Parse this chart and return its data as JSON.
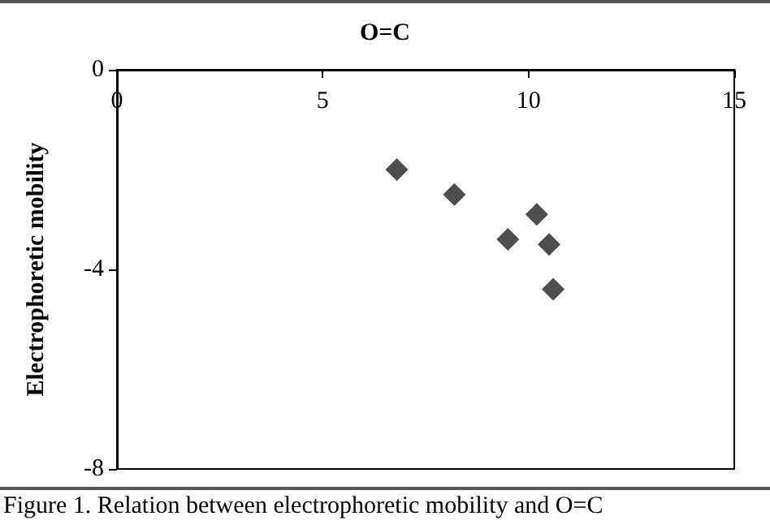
{
  "chart_data": {
    "type": "scatter",
    "title": "O=C",
    "ylabel": "Electrophoretic mobility",
    "annotations": [
      "Figure 1. Relation between electrophoretic mobility and O=C"
    ],
    "x": [
      6.8,
      8.2,
      10.2,
      9.5,
      10.5,
      10.6
    ],
    "values": [
      -2.0,
      -2.5,
      -2.9,
      -3.4,
      -3.5,
      -4.4
    ],
    "color": "#222222",
    "marker": "diamond",
    "xlim": [
      0,
      15
    ],
    "xticks": [
      0,
      5,
      10,
      15
    ],
    "ylim": [
      -8,
      0
    ],
    "yticks": [
      -8,
      -4,
      0
    ],
    "grid": false
  }
}
